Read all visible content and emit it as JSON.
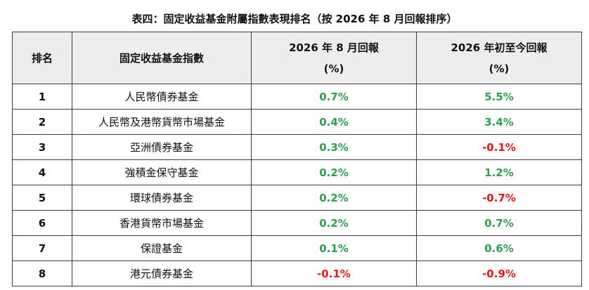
{
  "title": "表四：固定收益基金附屬指數表現排名（按 2026 年 8 月回報排序）",
  "headers": {
    "rank": "排名",
    "index": "固定收益基金指數",
    "aug_line1": "2026 年 8 月回報",
    "aug_line2": "(%)",
    "ytd_line1": "2026 年初至今回報",
    "ytd_line2": "(%)"
  },
  "colors": {
    "positive": "#2e9e4f",
    "negative": "#e8141c",
    "header_bg": "#ededed"
  },
  "rows": [
    {
      "rank": "1",
      "name": "人民幣債券基金",
      "aug": "0.7%",
      "ytd": "5.5%",
      "aug_sign": "pos",
      "ytd_sign": "pos"
    },
    {
      "rank": "2",
      "name": "人民幣及港幣貨幣市場基金",
      "aug": "0.4%",
      "ytd": "3.4%",
      "aug_sign": "pos",
      "ytd_sign": "pos"
    },
    {
      "rank": "3",
      "name": "亞洲債券基金",
      "aug": "0.3%",
      "ytd": "-0.1%",
      "aug_sign": "pos",
      "ytd_sign": "neg"
    },
    {
      "rank": "4",
      "name": "強積金保守基金",
      "aug": "0.2%",
      "ytd": "1.2%",
      "aug_sign": "pos",
      "ytd_sign": "pos"
    },
    {
      "rank": "5",
      "name": "環球債券基金",
      "aug": "0.2%",
      "ytd": "-0.7%",
      "aug_sign": "pos",
      "ytd_sign": "neg"
    },
    {
      "rank": "6",
      "name": "香港貨幣市場基金",
      "aug": "0.2%",
      "ytd": "0.7%",
      "aug_sign": "pos",
      "ytd_sign": "pos"
    },
    {
      "rank": "7",
      "name": "保證基金",
      "aug": "0.1%",
      "ytd": "0.6%",
      "aug_sign": "pos",
      "ytd_sign": "pos"
    },
    {
      "rank": "8",
      "name": "港元債券基金",
      "aug": "-0.1%",
      "ytd": "-0.9%",
      "aug_sign": "neg",
      "ytd_sign": "neg"
    }
  ]
}
